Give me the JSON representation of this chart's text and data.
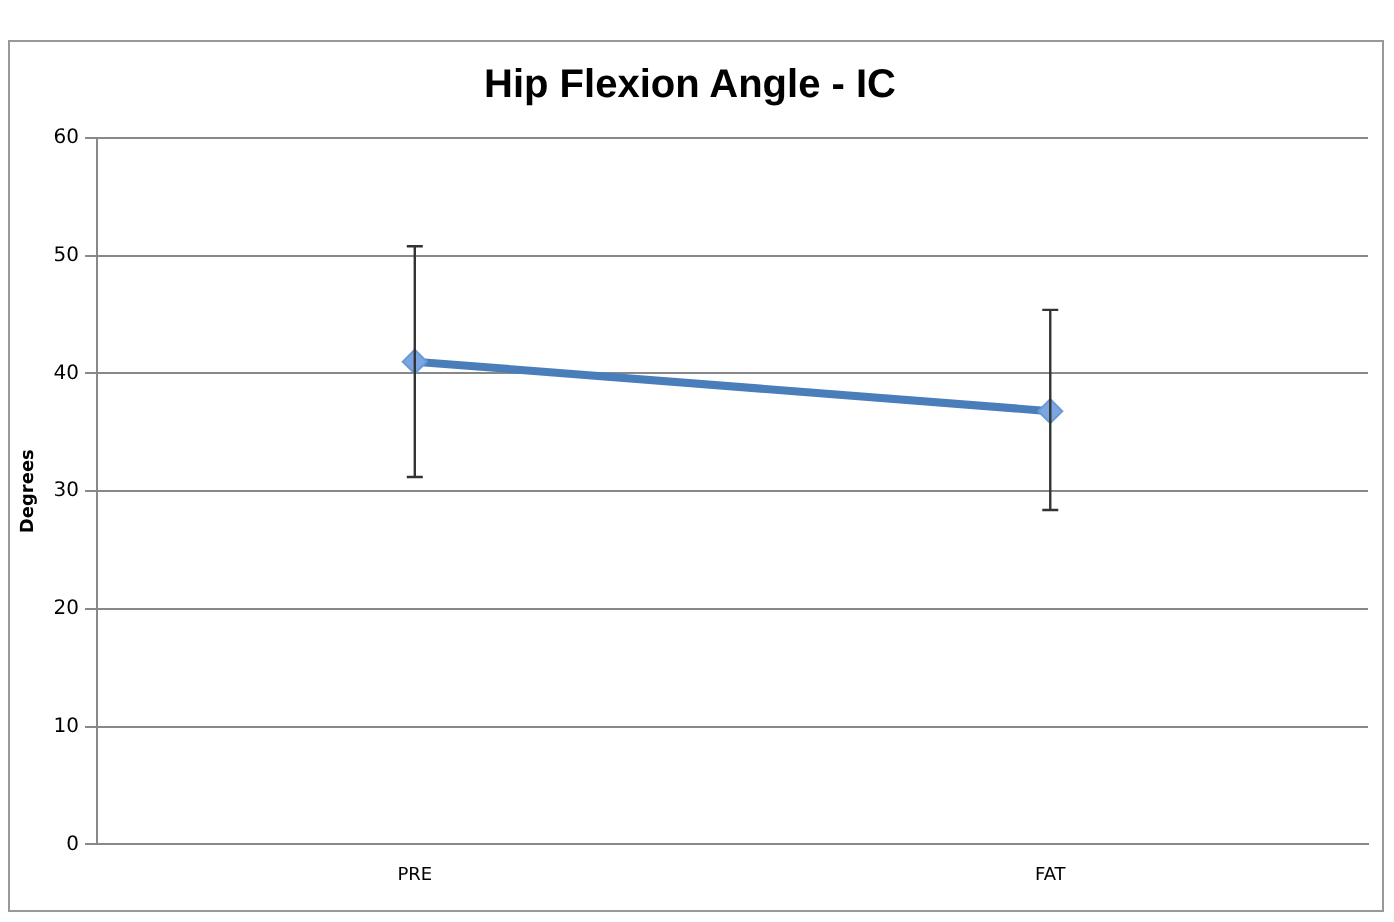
{
  "chart_data": {
    "type": "line",
    "title": "Hip Flexion Angle - IC",
    "ylabel": "Degrees",
    "categories": [
      "PRE",
      "FAT"
    ],
    "series": [
      {
        "color": "#4a7ebb",
        "values": [
          41,
          36.8
        ],
        "errors": [
          [
            31.2,
            50.8
          ],
          [
            28.4,
            45.4
          ]
        ]
      }
    ],
    "ylim": [
      0,
      60
    ],
    "yticks": [
      0,
      10,
      20,
      30,
      40,
      50,
      60
    ],
    "grid": "y",
    "legend": false,
    "marker": "diamond",
    "line_style": "solid"
  }
}
